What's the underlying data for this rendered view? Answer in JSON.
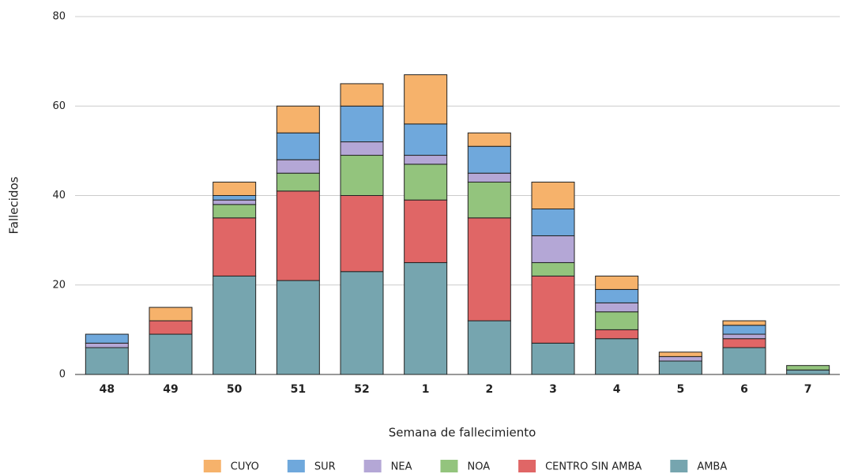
{
  "chart_data": {
    "type": "stacked_bar",
    "x_label": "Semana de fallecimiento",
    "y_label": "Fallecidos",
    "categories": [
      "48",
      "49",
      "50",
      "51",
      "52",
      "1",
      "2",
      "3",
      "4",
      "5",
      "6",
      "7"
    ],
    "series": [
      {
        "name": "AMBA",
        "color": "#76a5af",
        "values": [
          6,
          9,
          22,
          21,
          23,
          25,
          12,
          7,
          8,
          3,
          6,
          1
        ]
      },
      {
        "name": "CENTRO SIN AMBA",
        "color": "#e06666",
        "values": [
          0,
          3,
          13,
          20,
          17,
          14,
          23,
          15,
          2,
          0,
          2,
          0
        ]
      },
      {
        "name": "NOA",
        "color": "#93c47d",
        "values": [
          0,
          0,
          3,
          4,
          9,
          8,
          8,
          3,
          4,
          0,
          0,
          1
        ]
      },
      {
        "name": "NEA",
        "color": "#b4a7d6",
        "values": [
          1,
          0,
          1,
          3,
          3,
          2,
          2,
          6,
          2,
          1,
          1,
          0
        ]
      },
      {
        "name": "SUR",
        "color": "#6fa8dc",
        "values": [
          2,
          0,
          1,
          6,
          8,
          7,
          6,
          6,
          3,
          0,
          2,
          0
        ]
      },
      {
        "name": "CUYO",
        "color": "#f6b26b",
        "values": [
          0,
          3,
          3,
          6,
          5,
          11,
          3,
          6,
          3,
          1,
          1,
          0
        ]
      }
    ],
    "legend_order": [
      "CUYO",
      "SUR",
      "NEA",
      "NOA",
      "CENTRO SIN AMBA",
      "AMBA"
    ],
    "ylim": [
      0,
      80
    ],
    "yticks": [
      0,
      20,
      40,
      60,
      80
    ],
    "grid": true
  }
}
